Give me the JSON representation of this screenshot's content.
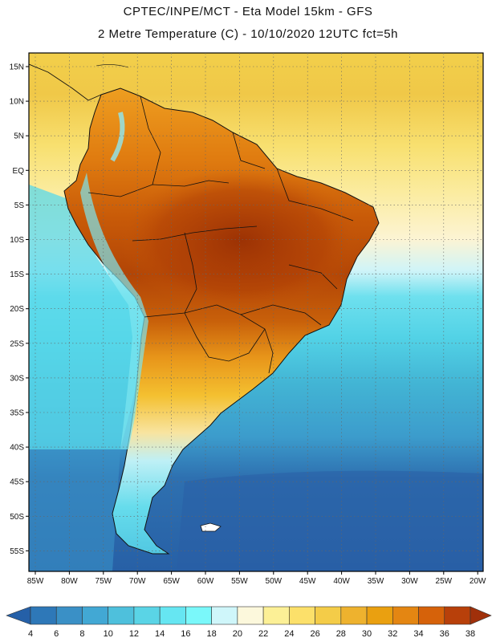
{
  "header": {
    "line1": "CPTEC/INPE/MCT -  Eta Model 15km - GFS",
    "line2": "2 Metre Temperature (C) - 10/10/2020 12UTC fct=5h"
  },
  "map": {
    "lat_labels": [
      "15N",
      "10N",
      "5N",
      "EQ",
      "5S",
      "10S",
      "15S",
      "20S",
      "25S",
      "30S",
      "35S",
      "40S",
      "45S",
      "50S",
      "55S"
    ],
    "lon_labels": [
      "85W",
      "80W",
      "75W",
      "70W",
      "65W",
      "60W",
      "55W",
      "50W",
      "45W",
      "40W",
      "35W",
      "30W",
      "25W",
      "20W"
    ],
    "colors": {
      "land_hot": "#a53a05",
      "land_warm": "#dd6a0c",
      "land_mild": "#f0a520",
      "ocean_tropical": "#f2cf4a",
      "ocean_cool": "#55d8ea",
      "ocean_cold": "#2b5ea4"
    }
  },
  "colorbar": {
    "labels": [
      "4",
      "6",
      "8",
      "10",
      "12",
      "14",
      "16",
      "18",
      "20",
      "22",
      "24",
      "26",
      "28",
      "30",
      "32",
      "34",
      "36",
      "38"
    ],
    "colors": [
      "#2560a8",
      "#2e78b8",
      "#3a90c6",
      "#42a8d4",
      "#4ec0dc",
      "#5ad4e6",
      "#66e6f2",
      "#7af8fa",
      "#cff6fa",
      "#fcf8dc",
      "#fcf096",
      "#fce06a",
      "#f4cc48",
      "#eeb22e",
      "#eaa010",
      "#e48612",
      "#d6620a",
      "#b8400a",
      "#a0300a"
    ]
  }
}
